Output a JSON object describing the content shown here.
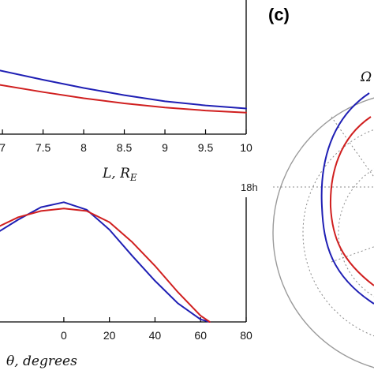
{
  "chart_data": [
    {
      "type": "line",
      "xlabel": "L, R_E",
      "xlabel_main": "L, R",
      "xlabel_sub": "E",
      "xlim": [
        6.97,
        10
      ],
      "ylim": [
        0,
        1
      ],
      "x_ticks": [
        "7",
        "7.5",
        "8",
        "8.5",
        "9",
        "9.5",
        "10"
      ],
      "x_tick_values": [
        7,
        7.5,
        8,
        8.5,
        9,
        9.5,
        10
      ],
      "series": [
        {
          "color": "#1f1fb4",
          "x": [
            6.97,
            7.5,
            8,
            8.5,
            9,
            9.5,
            10
          ],
          "y": [
            0.62,
            0.53,
            0.45,
            0.38,
            0.32,
            0.28,
            0.25
          ]
        },
        {
          "color": "#d01f1f",
          "x": [
            6.97,
            7.5,
            8,
            8.5,
            9,
            9.5,
            10
          ],
          "y": [
            0.48,
            0.41,
            0.35,
            0.3,
            0.26,
            0.23,
            0.21
          ]
        }
      ]
    },
    {
      "type": "line",
      "xlabel": "θ, degrees",
      "xlim": [
        -28,
        80
      ],
      "ylim": [
        0,
        1
      ],
      "x_ticks": [
        "0",
        "20",
        "40",
        "60",
        "80"
      ],
      "x_tick_values": [
        0,
        20,
        40,
        60,
        80
      ],
      "series": [
        {
          "color": "#1f1fb4",
          "x": [
            -28,
            -20,
            -10,
            0,
            10,
            20,
            30,
            40,
            50,
            60,
            64
          ],
          "y": [
            0.73,
            0.82,
            0.92,
            0.96,
            0.9,
            0.74,
            0.53,
            0.33,
            0.15,
            0.02,
            0.0
          ]
        },
        {
          "color": "#d01f1f",
          "x": [
            -28,
            -20,
            -10,
            0,
            10,
            20,
            30,
            40,
            50,
            60,
            64
          ],
          "y": [
            0.77,
            0.84,
            0.89,
            0.91,
            0.89,
            0.8,
            0.64,
            0.45,
            0.24,
            0.05,
            0.0
          ]
        }
      ]
    },
    {
      "type": "polar",
      "panel_label": "(c)",
      "title": "Ω",
      "angular_labels": [
        "18h"
      ],
      "grid": true,
      "series": [
        {
          "color": "#1f1fb4"
        },
        {
          "color": "#d01f1f"
        }
      ]
    }
  ]
}
